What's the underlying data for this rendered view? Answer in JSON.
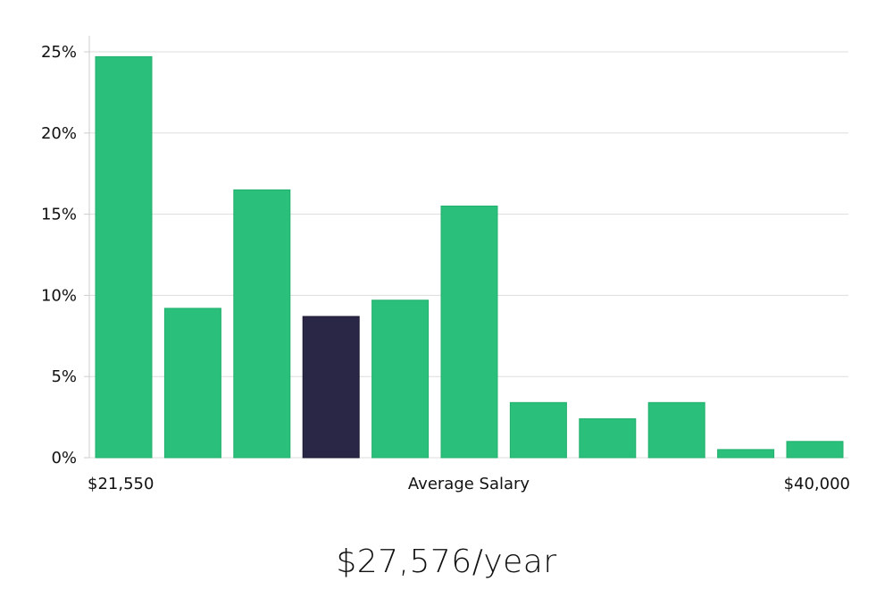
{
  "chart_data": {
    "type": "bar",
    "ylabel_format": "percent",
    "y_ticks": [
      "0%",
      "5%",
      "10%",
      "15%",
      "20%",
      "25%"
    ],
    "ylim": [
      0,
      26
    ],
    "xlabel": "Average Salary",
    "x_min_label": "$21,550",
    "x_max_label": "$40,000",
    "values": [
      24.7,
      9.2,
      16.5,
      8.7,
      9.7,
      15.5,
      3.4,
      2.4,
      3.4,
      0.5,
      1.0
    ],
    "highlight_index": 3,
    "grid": true
  },
  "colors": {
    "bar": "#2abf7a",
    "bar_border": "#22b06e",
    "highlight": "#2a2746",
    "grid": "#dddddd",
    "axis": "#cccccc"
  },
  "summary": {
    "average_salary": "$27,576/year"
  }
}
